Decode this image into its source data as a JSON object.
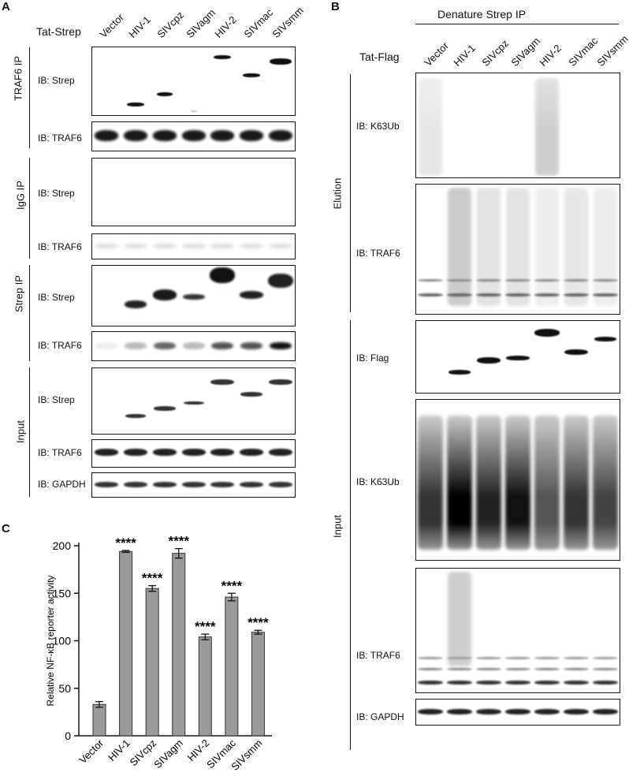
{
  "panels": {
    "a": "A",
    "b": "B",
    "c": "C"
  },
  "lanes": [
    "Vector",
    "HIV-1",
    "SIVcpz",
    "SIVagm",
    "HIV-2",
    "SIVmac",
    "SIVsmm"
  ],
  "panel_a": {
    "header": "Tat-Strep",
    "groups": {
      "traf6_ip": "TRAF6 IP",
      "igg_ip": "IgG IP",
      "strep_ip": "Strep IP",
      "input": "Input"
    },
    "blots": {
      "traf6ip_strep": "IB: Strep",
      "traf6ip_traf6": "IB: TRAF6",
      "iggip_strep": "IB: Strep",
      "iggip_traf6": "IB: TRAF6",
      "strepip_strep": "IB: Strep",
      "strepip_traf6": "IB: TRAF6",
      "input_strep": "IB: Strep",
      "input_traf6": "IB: TRAF6",
      "input_gapdh": "IB: GAPDH"
    }
  },
  "panel_b": {
    "title": "Denature Strep IP",
    "header": "Tat-Flag",
    "groups": {
      "elution": "Elution",
      "input": "Input"
    },
    "blots": {
      "elution_k63": "IB: K63Ub",
      "elution_traf6": "IB: TRAF6",
      "input_flag": "IB: Flag",
      "input_k63": "IB: K63Ub",
      "input_traf6": "IB: TRAF6",
      "input_gapdh": "IB: GAPDH"
    }
  },
  "chart_data": {
    "type": "bar",
    "categories": [
      "Vector",
      "HIV-1",
      "SIVcpz",
      "SIVagm",
      "HIV-2",
      "SIVmac",
      "SIVsmm"
    ],
    "values": [
      33,
      194,
      155,
      192,
      104,
      146,
      109
    ],
    "errors": [
      3,
      1,
      3,
      5,
      3,
      4,
      2
    ],
    "significance": [
      "",
      "****",
      "****",
      "****",
      "****",
      "****",
      "****"
    ],
    "ylabel": "Relative NF-κB reporter activity",
    "xlabel": "",
    "ylim": [
      0,
      200
    ],
    "yticks": [
      0,
      50,
      100,
      150,
      200
    ],
    "bar_color": "#9a9a9a"
  }
}
